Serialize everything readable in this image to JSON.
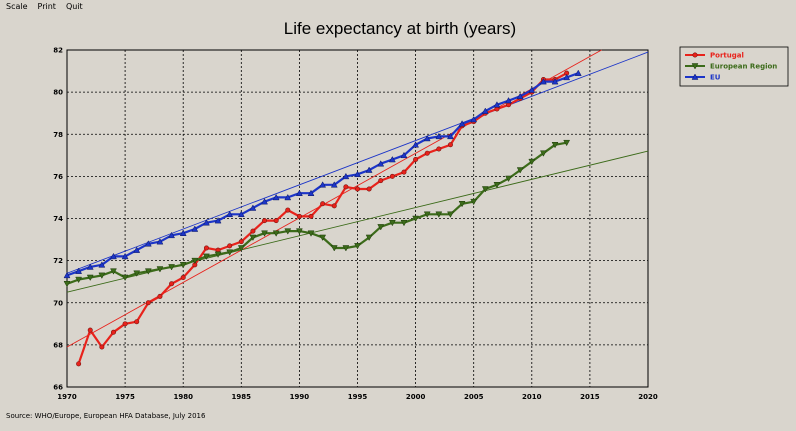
{
  "menu": {
    "items": [
      "Scale",
      "Print",
      "Quit"
    ]
  },
  "source": "Source: WHO/Europe, European HFA Database, July 2016",
  "chart_data": {
    "type": "line",
    "title": "Life expectancy at birth (years)",
    "xlabel": "",
    "ylabel": "",
    "xlim": [
      1970,
      2020
    ],
    "ylim": [
      66,
      82
    ],
    "x_ticks": [
      1970,
      1975,
      1980,
      1985,
      1990,
      1995,
      2000,
      2005,
      2010,
      2015,
      2020
    ],
    "y_ticks": [
      66,
      68,
      70,
      72,
      74,
      76,
      78,
      80,
      82
    ],
    "grid": true,
    "legend_position": "top-right",
    "series": [
      {
        "name": "Portugal",
        "color": "#e8221b",
        "marker": "circle",
        "points": [
          [
            1971,
            67.1
          ],
          [
            1972,
            68.7
          ],
          [
            1973,
            67.9
          ],
          [
            1974,
            68.6
          ],
          [
            1975,
            69.0
          ],
          [
            1976,
            69.1
          ],
          [
            1977,
            70.0
          ],
          [
            1978,
            70.3
          ],
          [
            1979,
            70.9
          ],
          [
            1980,
            71.2
          ],
          [
            1981,
            71.8
          ],
          [
            1982,
            72.6
          ],
          [
            1983,
            72.5
          ],
          [
            1984,
            72.7
          ],
          [
            1985,
            72.9
          ],
          [
            1986,
            73.4
          ],
          [
            1987,
            73.9
          ],
          [
            1988,
            73.9
          ],
          [
            1989,
            74.4
          ],
          [
            1990,
            74.1
          ],
          [
            1991,
            74.1
          ],
          [
            1992,
            74.7
          ],
          [
            1993,
            74.6
          ],
          [
            1994,
            75.5
          ],
          [
            1995,
            75.4
          ],
          [
            1996,
            75.4
          ],
          [
            1997,
            75.8
          ],
          [
            1998,
            76.0
          ],
          [
            1999,
            76.2
          ],
          [
            2000,
            76.8
          ],
          [
            2001,
            77.1
          ],
          [
            2002,
            77.3
          ],
          [
            2003,
            77.5
          ],
          [
            2004,
            78.4
          ],
          [
            2005,
            78.6
          ],
          [
            2006,
            79.0
          ],
          [
            2007,
            79.2
          ],
          [
            2008,
            79.4
          ],
          [
            2009,
            79.7
          ],
          [
            2010,
            80.0
          ],
          [
            2011,
            80.6
          ],
          [
            2012,
            80.6
          ],
          [
            2013,
            80.9
          ]
        ],
        "trend": [
          [
            1970,
            67.9
          ],
          [
            2016,
            82.0
          ]
        ]
      },
      {
        "name": "European Region",
        "color": "#3c6b1a",
        "marker": "triangle-down",
        "points": [
          [
            1970,
            70.9
          ],
          [
            1971,
            71.1
          ],
          [
            1972,
            71.2
          ],
          [
            1973,
            71.3
          ],
          [
            1974,
            71.5
          ],
          [
            1975,
            71.2
          ],
          [
            1976,
            71.4
          ],
          [
            1977,
            71.5
          ],
          [
            1978,
            71.6
          ],
          [
            1979,
            71.7
          ],
          [
            1980,
            71.8
          ],
          [
            1981,
            72.0
          ],
          [
            1982,
            72.2
          ],
          [
            1983,
            72.3
          ],
          [
            1984,
            72.4
          ],
          [
            1985,
            72.6
          ],
          [
            1986,
            73.1
          ],
          [
            1987,
            73.3
          ],
          [
            1988,
            73.3
          ],
          [
            1989,
            73.4
          ],
          [
            1990,
            73.4
          ],
          [
            1991,
            73.3
          ],
          [
            1992,
            73.1
          ],
          [
            1993,
            72.6
          ],
          [
            1994,
            72.6
          ],
          [
            1995,
            72.7
          ],
          [
            1996,
            73.1
          ],
          [
            1997,
            73.6
          ],
          [
            1998,
            73.8
          ],
          [
            1999,
            73.8
          ],
          [
            2000,
            74.0
          ],
          [
            2001,
            74.2
          ],
          [
            2002,
            74.2
          ],
          [
            2003,
            74.2
          ],
          [
            2004,
            74.7
          ],
          [
            2005,
            74.8
          ],
          [
            2006,
            75.4
          ],
          [
            2007,
            75.6
          ],
          [
            2008,
            75.9
          ],
          [
            2009,
            76.3
          ],
          [
            2010,
            76.7
          ],
          [
            2011,
            77.1
          ],
          [
            2012,
            77.5
          ],
          [
            2013,
            77.6
          ]
        ],
        "trend": [
          [
            1970,
            70.5
          ],
          [
            2020,
            77.2
          ]
        ]
      },
      {
        "name": "EU",
        "color": "#1c35c8",
        "marker": "triangle-up",
        "points": [
          [
            1970,
            71.3
          ],
          [
            1971,
            71.5
          ],
          [
            1972,
            71.7
          ],
          [
            1973,
            71.8
          ],
          [
            1974,
            72.2
          ],
          [
            1975,
            72.2
          ],
          [
            1976,
            72.5
          ],
          [
            1977,
            72.8
          ],
          [
            1978,
            72.9
          ],
          [
            1979,
            73.2
          ],
          [
            1980,
            73.3
          ],
          [
            1981,
            73.5
          ],
          [
            1982,
            73.8
          ],
          [
            1983,
            73.9
          ],
          [
            1984,
            74.2
          ],
          [
            1985,
            74.2
          ],
          [
            1986,
            74.5
          ],
          [
            1987,
            74.8
          ],
          [
            1988,
            75.0
          ],
          [
            1989,
            75.0
          ],
          [
            1990,
            75.2
          ],
          [
            1991,
            75.2
          ],
          [
            1992,
            75.6
          ],
          [
            1993,
            75.6
          ],
          [
            1994,
            76.0
          ],
          [
            1995,
            76.1
          ],
          [
            1996,
            76.3
          ],
          [
            1997,
            76.6
          ],
          [
            1998,
            76.8
          ],
          [
            1999,
            77.0
          ],
          [
            2000,
            77.5
          ],
          [
            2001,
            77.8
          ],
          [
            2002,
            77.9
          ],
          [
            2003,
            77.9
          ],
          [
            2004,
            78.5
          ],
          [
            2005,
            78.7
          ],
          [
            2006,
            79.1
          ],
          [
            2007,
            79.4
          ],
          [
            2008,
            79.6
          ],
          [
            2009,
            79.8
          ],
          [
            2010,
            80.1
          ],
          [
            2011,
            80.5
          ],
          [
            2012,
            80.5
          ],
          [
            2013,
            80.7
          ],
          [
            2014,
            80.9
          ]
        ],
        "trend": [
          [
            1970,
            71.4
          ],
          [
            2020,
            81.9
          ]
        ]
      }
    ]
  }
}
